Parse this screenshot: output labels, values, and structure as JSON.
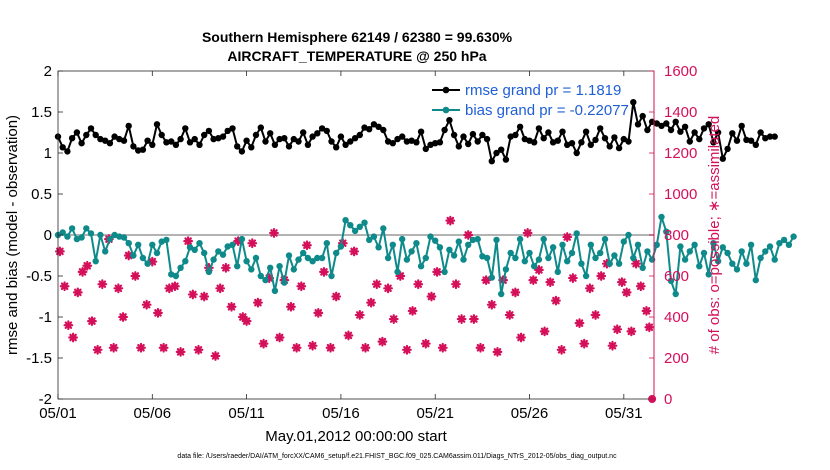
{
  "figure": {
    "title_line1": "Southern Hemisphere 62149 / 62380 = 99.630%",
    "title_line2": "AIRCRAFT_TEMPERATURE @ 250 hPa",
    "footer": "data file: /Users/raeder/DAI/ATM_forcXX/CAM6_setup/f.e21.FHIST_BGC.f09_025.CAM6assim.011/Diags_NTrS_2012-05/obs_diag_output.nc"
  },
  "colors": {
    "rmse": "#000000",
    "bias": "#0f8a8a",
    "obs": "#d4105a",
    "zero_line": "#b3b3b3",
    "legend_text": "#1f5fd6",
    "right_axis": "#d4105a"
  },
  "chart_data": {
    "type": "line",
    "title": "Southern Hemisphere 62149 / 62380 = 99.630%",
    "subtitle": "AIRCRAFT_TEMPERATURE @ 250 hPa",
    "xlabel": "May.01,2012 00:00:00 start",
    "ylabel": "rmse and bias (model - observation)",
    "y2label": "# of obs: o=possible; ∗=assimilated",
    "xlim": [
      0,
      31.6
    ],
    "ylim": [
      -2,
      2
    ],
    "y2lim": [
      0,
      1600
    ],
    "x_ticks": [
      0,
      5,
      10,
      15,
      20,
      25,
      30
    ],
    "x_tick_labels": [
      "05/01",
      "05/06",
      "05/11",
      "05/16",
      "05/21",
      "05/26",
      "05/31"
    ],
    "y_ticks": [
      -2,
      -1.5,
      -1,
      -0.5,
      0,
      0.5,
      1,
      1.5,
      2
    ],
    "y_tick_labels": [
      "-2",
      "-1.5",
      "-1",
      "-0.5",
      "0",
      "0.5",
      "1",
      "1.5",
      "2"
    ],
    "y2_ticks": [
      0,
      200,
      400,
      600,
      800,
      1000,
      1200,
      1400,
      1600
    ],
    "y2_tick_labels": [
      "0",
      "200",
      "400",
      "600",
      "800",
      "1000",
      "1200",
      "1400",
      "1600"
    ],
    "legend": [
      {
        "name": "rmse grand pr = 1.1819"
      },
      {
        "name": "bias grand pr = -0.22077"
      }
    ],
    "series": [
      {
        "name": "rmse",
        "step": 0.25,
        "values": [
          1.2,
          1.07,
          1.02,
          1.18,
          1.25,
          1.12,
          1.22,
          1.3,
          1.22,
          1.17,
          1.15,
          1.12,
          1.2,
          1.17,
          1.15,
          1.33,
          1.08,
          1.03,
          1.04,
          1.15,
          1.1,
          1.35,
          1.22,
          1.13,
          1.14,
          1.1,
          1.17,
          1.3,
          1.13,
          1.17,
          1.1,
          1.22,
          1.27,
          1.17,
          1.18,
          1.2,
          1.27,
          1.3,
          1.08,
          1.02,
          1.15,
          1.07,
          1.22,
          1.31,
          1.14,
          1.24,
          1.1,
          1.17,
          1.18,
          1.08,
          1.17,
          1.14,
          1.25,
          1.1,
          1.2,
          1.24,
          1.3,
          1.27,
          1.14,
          1.07,
          1.2,
          1.1,
          1.14,
          1.18,
          1.22,
          1.31,
          1.29,
          1.35,
          1.32,
          1.28,
          1.14,
          1.12,
          1.17,
          1.2,
          1.14,
          1.15,
          1.13,
          1.26,
          1.05,
          1.1,
          1.12,
          1.13,
          1.28,
          1.4,
          1.22,
          1.08,
          1.2,
          1.11,
          1.23,
          1.14,
          1.22,
          1.17,
          0.9,
          1.0,
          1.04,
          0.92,
          1.2,
          1.22,
          1.32,
          1.17,
          1.15,
          1.13,
          1.3,
          1.18,
          1.25,
          1.13,
          1.15,
          1.26,
          1.1,
          1.12,
          1.0,
          1.13,
          1.26,
          1.1,
          1.16,
          1.3,
          1.18,
          1.08,
          1.19,
          1.06,
          1.17,
          1.14,
          1.62,
          1.35,
          1.45,
          1.28,
          1.38,
          1.36,
          1.33,
          1.36,
          1.28,
          1.38,
          1.26,
          1.32,
          1.14,
          1.25,
          1.17,
          1.3,
          1.35,
          1.13,
          1.25,
          0.93,
          1.05,
          1.24,
          1.15,
          1.33,
          1.16,
          1.15,
          1.1,
          1.25,
          1.18,
          1.2,
          1.2
        ]
      },
      {
        "name": "bias",
        "step": 0.25,
        "values": [
          0.0,
          0.03,
          -0.02,
          0.08,
          -0.05,
          -0.03,
          0.08,
          0.02,
          -0.32,
          0.0,
          -0.2,
          -0.05,
          0.0,
          -0.02,
          -0.03,
          -0.1,
          -0.25,
          -0.12,
          -0.28,
          -0.35,
          -0.12,
          -0.22,
          -0.08,
          -0.06,
          -0.48,
          -0.5,
          -0.4,
          -0.32,
          -0.15,
          -0.18,
          -0.1,
          -0.22,
          -0.45,
          -0.3,
          -0.2,
          -0.24,
          -0.14,
          -0.12,
          -0.38,
          -0.05,
          -0.32,
          -0.42,
          -0.28,
          -0.5,
          -0.55,
          -0.4,
          -0.68,
          -0.38,
          -0.58,
          -0.25,
          -0.42,
          -0.3,
          -0.22,
          -0.28,
          -0.32,
          -0.28,
          -0.28,
          -0.1,
          -0.5,
          -0.22,
          -0.14,
          0.18,
          0.12,
          0.05,
          0.1,
          0.15,
          -0.06,
          -0.02,
          -0.15,
          0.08,
          -0.28,
          -0.12,
          -0.45,
          -0.05,
          -0.3,
          -0.2,
          -0.1,
          -0.38,
          -0.28,
          -0.02,
          -0.07,
          -0.15,
          -0.45,
          -0.18,
          -0.25,
          -0.08,
          -0.3,
          -0.12,
          -0.06,
          -0.05,
          -0.26,
          -0.28,
          -0.52,
          -0.06,
          -0.72,
          -0.42,
          -0.22,
          -0.28,
          -0.05,
          -0.32,
          -0.22,
          -0.38,
          -0.3,
          -0.05,
          -0.28,
          -0.15,
          -0.45,
          -0.12,
          -0.32,
          -0.22,
          0.02,
          -0.35,
          -0.5,
          -0.12,
          -0.28,
          -0.22,
          -0.05,
          -0.35,
          -0.25,
          -0.35,
          -0.08,
          0.0,
          -0.28,
          -0.12,
          -0.4,
          -0.2,
          -0.3,
          -0.12,
          0.22,
          0.04,
          -0.56,
          -0.72,
          -0.14,
          -0.3,
          -0.2,
          -0.12,
          -0.38,
          -0.22,
          -0.48,
          -0.1,
          -0.32,
          -0.15,
          -0.22,
          -0.35,
          -0.42,
          -0.2,
          -0.35,
          -0.12,
          -0.55,
          -0.28,
          -0.2,
          -0.14,
          -0.3,
          -0.1,
          -0.06,
          -0.12,
          -0.02
        ]
      },
      {
        "name": "obs_assimilated",
        "marker": "asterisk",
        "points": [
          [
            0.1,
            720
          ],
          [
            0.35,
            550
          ],
          [
            0.55,
            360
          ],
          [
            0.8,
            300
          ],
          [
            1.05,
            520
          ],
          [
            1.3,
            620
          ],
          [
            1.55,
            650
          ],
          [
            1.8,
            380
          ],
          [
            2.1,
            240
          ],
          [
            2.35,
            560
          ],
          [
            2.7,
            780
          ],
          [
            2.95,
            250
          ],
          [
            3.2,
            540
          ],
          [
            3.45,
            400
          ],
          [
            3.75,
            700
          ],
          [
            4.1,
            600
          ],
          [
            4.4,
            250
          ],
          [
            4.7,
            460
          ],
          [
            5.0,
            670
          ],
          [
            5.3,
            420
          ],
          [
            5.6,
            250
          ],
          [
            5.9,
            540
          ],
          [
            6.2,
            550
          ],
          [
            6.5,
            230
          ],
          [
            6.9,
            770
          ],
          [
            7.15,
            510
          ],
          [
            7.45,
            240
          ],
          [
            7.75,
            500
          ],
          [
            8.0,
            640
          ],
          [
            8.35,
            210
          ],
          [
            8.6,
            540
          ],
          [
            8.9,
            640
          ],
          [
            9.2,
            450
          ],
          [
            9.55,
            770
          ],
          [
            9.8,
            400
          ],
          [
            10.0,
            380
          ],
          [
            10.3,
            760
          ],
          [
            10.6,
            470
          ],
          [
            10.9,
            270
          ],
          [
            11.2,
            590
          ],
          [
            11.45,
            810
          ],
          [
            11.75,
            300
          ],
          [
            12.0,
            580
          ],
          [
            12.35,
            450
          ],
          [
            12.65,
            250
          ],
          [
            12.9,
            550
          ],
          [
            13.2,
            750
          ],
          [
            13.5,
            260
          ],
          [
            13.8,
            420
          ],
          [
            14.1,
            620
          ],
          [
            14.45,
            250
          ],
          [
            14.75,
            500
          ],
          [
            15.1,
            760
          ],
          [
            15.4,
            310
          ],
          [
            15.7,
            720
          ],
          [
            16.0,
            410
          ],
          [
            16.3,
            250
          ],
          [
            16.6,
            470
          ],
          [
            16.9,
            560
          ],
          [
            17.2,
            280
          ],
          [
            17.5,
            540
          ],
          [
            17.8,
            390
          ],
          [
            18.15,
            600
          ],
          [
            18.5,
            240
          ],
          [
            18.8,
            430
          ],
          [
            19.1,
            560
          ],
          [
            19.5,
            270
          ],
          [
            19.8,
            500
          ],
          [
            20.1,
            620
          ],
          [
            20.4,
            250
          ],
          [
            20.8,
            870
          ],
          [
            21.1,
            560
          ],
          [
            21.4,
            390
          ],
          [
            21.75,
            800
          ],
          [
            22.05,
            390
          ],
          [
            22.4,
            250
          ],
          [
            22.7,
            580
          ],
          [
            23.0,
            460
          ],
          [
            23.3,
            230
          ],
          [
            23.6,
            580
          ],
          [
            23.95,
            410
          ],
          [
            24.25,
            520
          ],
          [
            24.55,
            300
          ],
          [
            24.9,
            810
          ],
          [
            25.2,
            580
          ],
          [
            25.5,
            630
          ],
          [
            25.8,
            330
          ],
          [
            26.1,
            570
          ],
          [
            26.4,
            480
          ],
          [
            26.7,
            240
          ],
          [
            27.0,
            790
          ],
          [
            27.3,
            590
          ],
          [
            27.65,
            370
          ],
          [
            27.9,
            270
          ],
          [
            28.2,
            540
          ],
          [
            28.5,
            410
          ],
          [
            28.8,
            600
          ],
          [
            29.1,
            660
          ],
          [
            29.4,
            260
          ],
          [
            29.65,
            340
          ],
          [
            29.9,
            570
          ],
          [
            30.15,
            520
          ],
          [
            30.4,
            330
          ],
          [
            30.65,
            660
          ],
          [
            30.9,
            550
          ],
          [
            31.2,
            430
          ],
          [
            31.35,
            350
          ],
          [
            31.5,
            0
          ]
        ]
      }
    ]
  }
}
